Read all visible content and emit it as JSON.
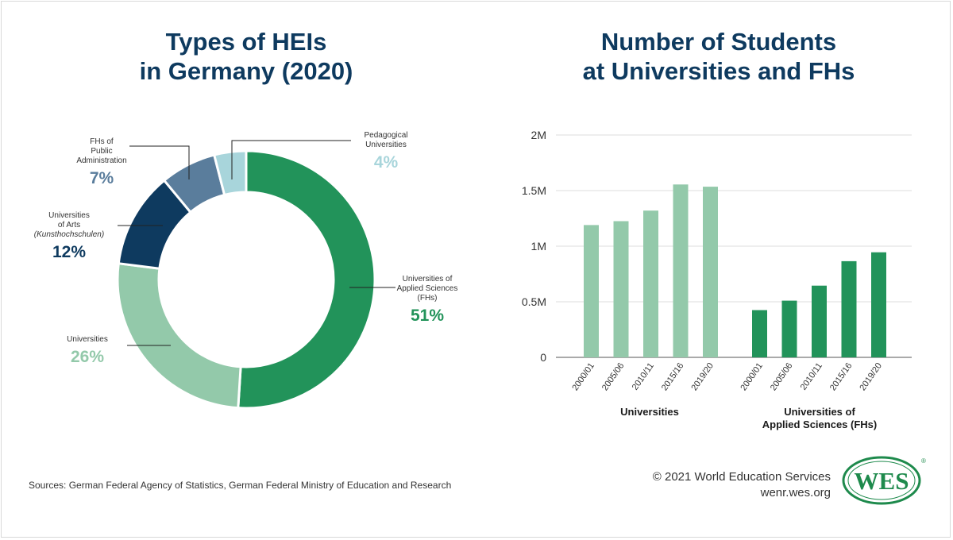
{
  "left_title": {
    "line1": "Types of HEIs",
    "line2": "in Germany (2020)"
  },
  "right_title": {
    "line1": "Number of Students",
    "line2": "at Universities and FHs"
  },
  "donut_labels": {
    "fh": {
      "line1": "Universities of",
      "line2": "Applied Sciences",
      "line3": "(FHs)",
      "pct": "51%"
    },
    "univ": {
      "line1": "Universities",
      "pct": "26%"
    },
    "arts": {
      "line1": "Universities",
      "line2": "of Arts",
      "line3": "(Kunsthochschulen)",
      "pct": "12%"
    },
    "pubadmin": {
      "line1": "FHs of",
      "line2": "Public",
      "line3": "Administration",
      "pct": "7%"
    },
    "pedagog": {
      "line1": "Pedagogical",
      "line2": "Universities",
      "pct": "4%"
    }
  },
  "bar_group_labels": {
    "universities": "Universities",
    "fh_line1": "Universities of",
    "fh_line2": "Applied Sciences (FHs)"
  },
  "footer": {
    "sources": "Sources: German Federal Agency of Statistics, German Federal Ministry of Education and Research",
    "copyright": "© 2021 World Education Services",
    "site": "wenr.wes.org",
    "logo_text": "WES",
    "logo_mark": "®"
  },
  "colors": {
    "title": "#0e3a5f",
    "fh_green": "#22935a",
    "univ_light_green": "#93c9aa",
    "arts_navy": "#0e3a5f",
    "pubadmin_slate": "#5a7d9c",
    "pedagog_teal": "#a8d5db",
    "logo_green": "#1e8a4c"
  },
  "chart_data": [
    {
      "type": "pie",
      "donut": true,
      "title": "Types of HEIs in Germany (2020)",
      "slices": [
        {
          "label": "Universities of Applied Sciences (FHs)",
          "value": 51,
          "color": "#22935a"
        },
        {
          "label": "Universities",
          "value": 26,
          "color": "#93c9aa"
        },
        {
          "label": "Universities of Arts (Kunsthochschulen)",
          "value": 12,
          "color": "#0e3a5f"
        },
        {
          "label": "FHs of Public Administration",
          "value": 7,
          "color": "#5a7d9c"
        },
        {
          "label": "Pedagogical Universities",
          "value": 4,
          "color": "#a8d5db"
        }
      ]
    },
    {
      "type": "bar",
      "title": "Number of Students at Universities and FHs",
      "categories": [
        "2000/01",
        "2005/06",
        "2010/11",
        "2015/16",
        "2019/20"
      ],
      "series": [
        {
          "name": "Universities",
          "values": [
            1190000,
            1225000,
            1320000,
            1555000,
            1535000
          ],
          "color": "#93c9aa"
        },
        {
          "name": "Universities of Applied Sciences (FHs)",
          "values": [
            425000,
            510000,
            645000,
            865000,
            945000
          ],
          "color": "#22935a"
        }
      ],
      "ylim": [
        0,
        2000000
      ],
      "yticks": [
        0,
        500000,
        1000000,
        1500000,
        2000000
      ],
      "ytick_labels": [
        "0",
        "0.5M",
        "1M",
        "1.5M",
        "2M"
      ],
      "grid": true
    }
  ]
}
